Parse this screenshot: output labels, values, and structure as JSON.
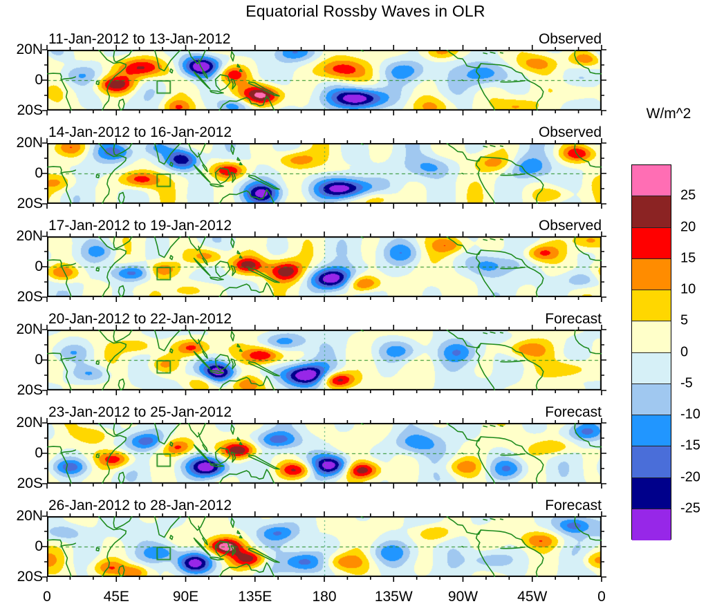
{
  "title": "Equatorial Rossby Waves in OLR",
  "colorbar": {
    "units_label": "W/m^2",
    "tick_labels": [
      "25",
      "20",
      "15",
      "10",
      "5",
      "0",
      "-5",
      "-10",
      "-15",
      "-20",
      "-25"
    ]
  },
  "axes": {
    "x_tick_labels": [
      "0",
      "45E",
      "90E",
      "135E",
      "180",
      "135W",
      "90W",
      "45W",
      "0"
    ],
    "x_tick_lons": [
      0,
      45,
      90,
      135,
      180,
      225,
      270,
      315,
      360
    ],
    "x_minor_tick_step_deg": 15,
    "y_tick_labels": [
      "20N",
      "0",
      "20S"
    ],
    "y_tick_lats": [
      20,
      0,
      -20
    ]
  },
  "chart_data": {
    "type": "heatmap",
    "title": "Equatorial Rossby Waves in OLR",
    "units": "W/m^2",
    "lon_range": [
      0,
      360
    ],
    "lat_range": [
      -20,
      20
    ],
    "contour_levels": [
      -25,
      -20,
      -15,
      -10,
      -5,
      0,
      5,
      10,
      15,
      20,
      25
    ],
    "palette_bottom_to_top": [
      "#9727e8",
      "#00008b",
      "#4a6ed9",
      "#2196ff",
      "#a0c8f0",
      "#d6f0f7",
      "#ffffc9",
      "#ffd700",
      "#ff8c00",
      "#ff0000",
      "#8b2323",
      "#ff6eb4"
    ],
    "coastline_color": "#1e8b1e",
    "equator_dashed_line_lat": 0,
    "dateline_dashed_line_lon": 180,
    "study_region_box": {
      "lon": [
        71.5,
        80
      ],
      "lat": [
        -8.5,
        -0.5
      ]
    },
    "panels": [
      {
        "date_range": "11-Jan-2012 to 13-Jan-2012",
        "source": "Observed",
        "bg": [
          4.3,
          40,
          36,
          0.6
        ],
        "anomaly_centers_lon_lat_amp_sx_sy": [
          [
            62,
            8,
            24,
            11,
            5
          ],
          [
            100,
            9,
            -32,
            9,
            5
          ],
          [
            45,
            -3,
            21,
            9,
            4
          ],
          [
            20,
            3,
            -10,
            10,
            5
          ],
          [
            5,
            18,
            -8,
            8,
            4
          ],
          [
            85,
            -18,
            14,
            7,
            4
          ],
          [
            120,
            4,
            16,
            7,
            4
          ],
          [
            140,
            -10,
            30,
            9,
            5
          ],
          [
            122,
            -17,
            -16,
            8,
            4
          ],
          [
            160,
            18,
            -12,
            9,
            4
          ],
          [
            190,
            7,
            18,
            11,
            5
          ],
          [
            202,
            -12,
            -34,
            12,
            5
          ],
          [
            232,
            6,
            -12,
            10,
            5
          ],
          [
            250,
            -18,
            12,
            10,
            5
          ],
          [
            255,
            19,
            14,
            8,
            4
          ],
          [
            285,
            4,
            -16,
            10,
            6
          ],
          [
            305,
            -17,
            10,
            9,
            4
          ],
          [
            318,
            11,
            12,
            9,
            4
          ],
          [
            350,
            14,
            16,
            8,
            4
          ],
          [
            345,
            -8,
            10,
            8,
            4
          ]
        ]
      },
      {
        "date_range": "14-Jan-2012 to 16-Jan-2012",
        "source": "Observed",
        "bg": [
          4.3,
          40,
          36,
          1.9
        ],
        "anomaly_centers_lon_lat_amp_sx_sy": [
          [
            15,
            17,
            12,
            8,
            4
          ],
          [
            45,
            14,
            -14,
            9,
            4
          ],
          [
            60,
            -4,
            19,
            9,
            4
          ],
          [
            8,
            -6,
            10,
            8,
            4
          ],
          [
            88,
            9,
            -26,
            8,
            5
          ],
          [
            118,
            2,
            21,
            8,
            4
          ],
          [
            140,
            -13,
            -22,
            9,
            5
          ],
          [
            162,
            9,
            13,
            9,
            4
          ],
          [
            192,
            -10,
            -32,
            12,
            5
          ],
          [
            215,
            -17,
            13,
            9,
            4
          ],
          [
            250,
            4,
            -11,
            10,
            5
          ],
          [
            290,
            7,
            11,
            9,
            4
          ],
          [
            312,
            4,
            -13,
            9,
            5
          ],
          [
            345,
            13,
            19,
            8,
            4
          ],
          [
            330,
            -14,
            11,
            9,
            4
          ],
          [
            70,
            17,
            -10,
            7,
            4
          ]
        ]
      },
      {
        "date_range": "17-Jan-2012 to 19-Jan-2012",
        "source": "Observed",
        "bg": [
          4.3,
          40,
          36,
          3.1
        ],
        "anomaly_centers_lon_lat_amp_sx_sy": [
          [
            10,
            -4,
            16,
            8,
            4
          ],
          [
            55,
            -4,
            -19,
            9,
            4
          ],
          [
            75,
            -2,
            15,
            7,
            4
          ],
          [
            105,
            7,
            16,
            8,
            4
          ],
          [
            130,
            1,
            21,
            8,
            4
          ],
          [
            155,
            -3,
            23,
            8,
            5
          ],
          [
            185,
            -8,
            -30,
            10,
            5
          ],
          [
            205,
            -11,
            21,
            8,
            4
          ],
          [
            230,
            9,
            -11,
            9,
            5
          ],
          [
            262,
            14,
            13,
            8,
            4
          ],
          [
            287,
            1,
            -13,
            9,
            5
          ],
          [
            320,
            9,
            16,
            8,
            4
          ],
          [
            347,
            -9,
            -11,
            8,
            4
          ],
          [
            352,
            17,
            12,
            7,
            4
          ],
          [
            35,
            10,
            -9,
            8,
            4
          ],
          [
            92,
            -16,
            11,
            8,
            4
          ]
        ]
      },
      {
        "date_range": "20-Jan-2012 to 22-Jan-2012",
        "source": "Forecast",
        "bg": [
          4.3,
          40,
          36,
          4.4
        ],
        "anomaly_centers_lon_lat_amp_sx_sy": [
          [
            30,
            -9,
            -11,
            9,
            4
          ],
          [
            60,
            9,
            11,
            8,
            4
          ],
          [
            95,
            8,
            19,
            8,
            4
          ],
          [
            112,
            -8,
            -30,
            8,
            5
          ],
          [
            100,
            -15,
            13,
            7,
            4
          ],
          [
            140,
            3,
            22,
            8,
            4
          ],
          [
            130,
            -16,
            12,
            8,
            4
          ],
          [
            168,
            -10,
            -32,
            11,
            5
          ],
          [
            188,
            -13,
            27,
            8,
            4
          ],
          [
            155,
            12,
            -13,
            9,
            4
          ],
          [
            230,
            6,
            -13,
            10,
            5
          ],
          [
            268,
            5,
            -11,
            9,
            5
          ],
          [
            310,
            7,
            13,
            9,
            4
          ],
          [
            340,
            -6,
            10,
            9,
            4
          ],
          [
            15,
            5,
            -9,
            8,
            4
          ],
          [
            75,
            -3,
            11,
            7,
            4
          ]
        ]
      },
      {
        "date_range": "23-Jan-2012 to 25-Jan-2012",
        "source": "Forecast",
        "bg": [
          4.3,
          40,
          36,
          5.6
        ],
        "anomaly_centers_lon_lat_amp_sx_sy": [
          [
            15,
            -9,
            -16,
            9,
            4
          ],
          [
            45,
            -4,
            19,
            8,
            4
          ],
          [
            65,
            8,
            -16,
            8,
            4
          ],
          [
            85,
            4,
            16,
            7,
            4
          ],
          [
            105,
            -9,
            -32,
            9,
            5
          ],
          [
            125,
            2,
            24,
            8,
            4
          ],
          [
            150,
            9,
            -16,
            9,
            4
          ],
          [
            162,
            -11,
            21,
            8,
            4
          ],
          [
            185,
            -8,
            -30,
            9,
            5
          ],
          [
            205,
            -11,
            23,
            8,
            4
          ],
          [
            240,
            7,
            -13,
            10,
            5
          ],
          [
            270,
            -9,
            11,
            9,
            4
          ],
          [
            300,
            -10,
            -15,
            9,
            5
          ],
          [
            330,
            4,
            11,
            9,
            4
          ],
          [
            350,
            14,
            -13,
            8,
            4
          ],
          [
            30,
            12,
            10,
            8,
            4
          ]
        ]
      },
      {
        "date_range": "26-Jan-2012 to 28-Jan-2012",
        "source": "Forecast",
        "bg": [
          4.3,
          40,
          36,
          0.9
        ],
        "anomaly_centers_lon_lat_amp_sx_sy": [
          [
            10,
            9,
            -11,
            9,
            4
          ],
          [
            40,
            -14,
            13,
            8,
            4
          ],
          [
            58,
            -17,
            16,
            7,
            4
          ],
          [
            75,
            -4,
            -13,
            8,
            4
          ],
          [
            95,
            -11,
            -30,
            8,
            5
          ],
          [
            115,
            0,
            27,
            8,
            4
          ],
          [
            132,
            -8,
            21,
            8,
            4
          ],
          [
            150,
            9,
            -13,
            9,
            4
          ],
          [
            167,
            -10,
            -19,
            9,
            5
          ],
          [
            192,
            -10,
            13,
            9,
            4
          ],
          [
            222,
            -4,
            -11,
            10,
            5
          ],
          [
            252,
            9,
            11,
            9,
            4
          ],
          [
            287,
            -9,
            -13,
            9,
            5
          ],
          [
            320,
            4,
            13,
            9,
            4
          ],
          [
            342,
            14,
            -16,
            8,
            4
          ],
          [
            356,
            -9,
            11,
            7,
            4
          ]
        ]
      }
    ]
  }
}
